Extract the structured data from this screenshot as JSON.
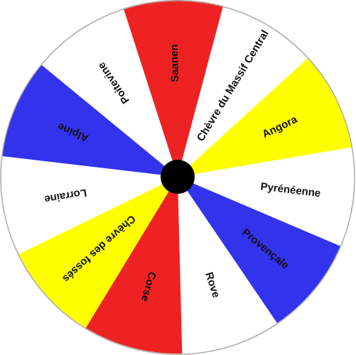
{
  "wheel": {
    "segments": [
      {
        "label": "Lorraine",
        "color": "#ffffff"
      },
      {
        "label": "Alpine",
        "color": "#3333ee"
      },
      {
        "label": "Poitevine",
        "color": "#ffffff"
      },
      {
        "label": "Saanen",
        "color": "#ee2222"
      },
      {
        "label": "Chèvre du Massif Central",
        "color": "#ffffff"
      },
      {
        "label": "Angora",
        "color": "#ffff00"
      },
      {
        "label": "Pyrénéenne",
        "color": "#ffffff"
      },
      {
        "label": "Provençale",
        "color": "#3333ee"
      },
      {
        "label": "Rove",
        "color": "#ffffff"
      },
      {
        "label": "Corse",
        "color": "#ee2222"
      },
      {
        "label": "Chèvre des fossés",
        "color": "#ffff00"
      }
    ],
    "hub_color": "#000000",
    "border_color": "#aaaaaa"
  }
}
